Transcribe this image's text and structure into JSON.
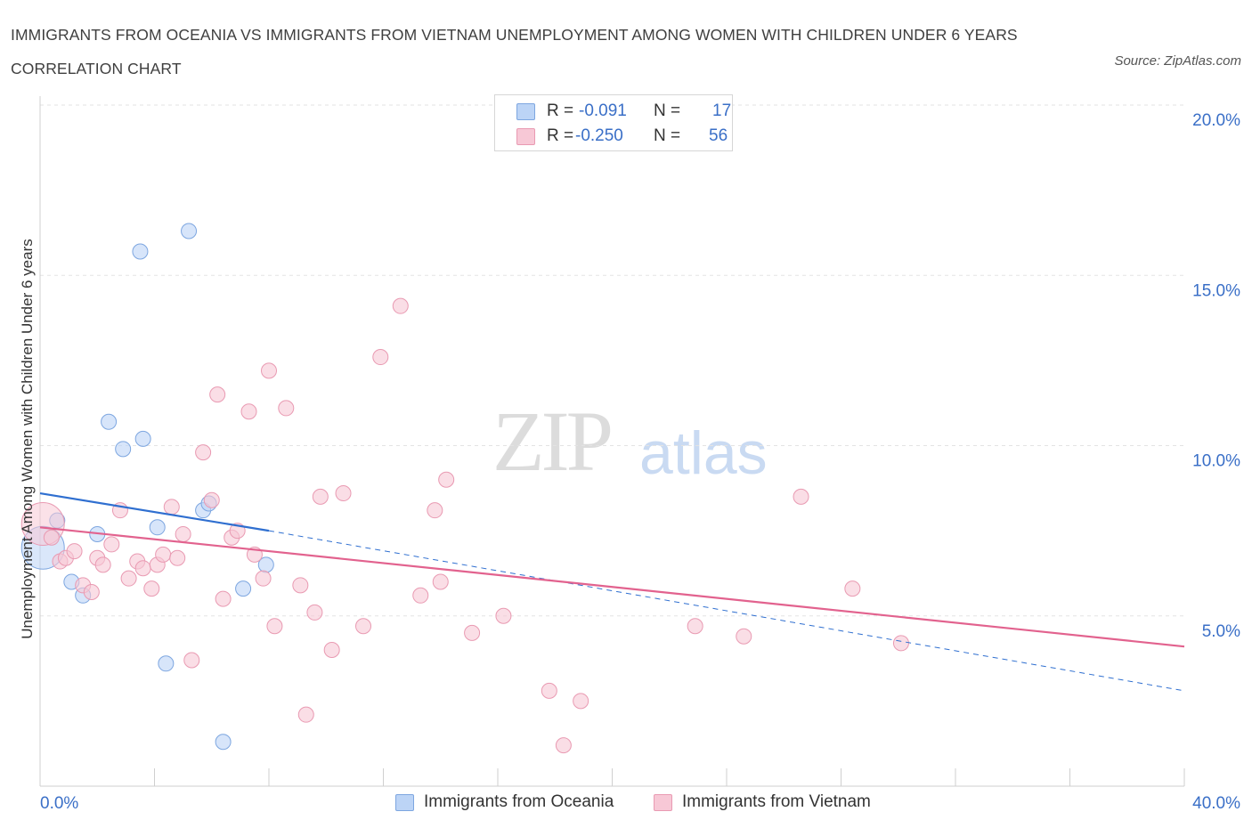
{
  "title": "IMMIGRANTS FROM OCEANIA VS IMMIGRANTS FROM VIETNAM UNEMPLOYMENT AMONG WOMEN WITH CHILDREN UNDER 6 YEARS CORRELATION CHART",
  "source": "Source: ZipAtlas.com",
  "watermark": {
    "zip": "ZIP",
    "atlas": "atlas"
  },
  "legend_top": [
    {
      "r_label": "R =",
      "r_value": "-0.091",
      "n_label": "N =",
      "n_value": "17"
    },
    {
      "r_label": "R =",
      "r_value": "-0.250",
      "n_label": "N =",
      "n_value": "56"
    }
  ],
  "legend_bottom": [
    {
      "label": "Immigrants from Oceania"
    },
    {
      "label": "Immigrants from Vietnam"
    }
  ],
  "colors": {
    "oceania_fill": "#bcd4f6",
    "oceania_stroke": "#7da6e0",
    "oceania_line": "#2f6fd0",
    "vietnam_fill": "#f7c8d6",
    "vietnam_stroke": "#e99ab2",
    "vietnam_line": "#e2628e",
    "tick_label": "#3a6fc7",
    "grid": "#e3e3e3"
  },
  "chart_data": {
    "type": "scatter",
    "title": "IMMIGRANTS FROM OCEANIA VS IMMIGRANTS FROM VIETNAM UNEMPLOYMENT AMONG WOMEN WITH CHILDREN UNDER 6 YEARS CORRELATION CHART",
    "xlabel": "",
    "ylabel": "Unemployment Among Women with Children Under 6 years",
    "xlim": [
      0,
      40
    ],
    "ylim": [
      0,
      20
    ],
    "x_tick_labels": [
      {
        "value": 0,
        "label": "0.0%"
      },
      {
        "value": 40,
        "label": "40.0%"
      }
    ],
    "y_tick_labels": [
      {
        "value": 5,
        "label": "5.0%"
      },
      {
        "value": 10,
        "label": "10.0%"
      },
      {
        "value": 15,
        "label": "15.0%"
      },
      {
        "value": 20,
        "label": "20.0%"
      }
    ],
    "y_gridlines": [
      5,
      10,
      15,
      20
    ],
    "x_minor_ticks": [
      0,
      4,
      8,
      12,
      16,
      20,
      24,
      28,
      32,
      36,
      40
    ],
    "series": [
      {
        "name": "Immigrants from Oceania",
        "r": -0.091,
        "n": 17,
        "trend": {
          "x0": 0,
          "y0": 8.6,
          "x1": 8,
          "y1": 7.5,
          "dash_to_x": 40,
          "dash_to_y": 2.8
        },
        "points": [
          {
            "x": 0.1,
            "y": 7.0,
            "size": "large"
          },
          {
            "x": 0.6,
            "y": 7.8
          },
          {
            "x": 1.1,
            "y": 6.0
          },
          {
            "x": 1.5,
            "y": 5.6
          },
          {
            "x": 2.0,
            "y": 7.4
          },
          {
            "x": 2.4,
            "y": 10.7
          },
          {
            "x": 2.9,
            "y": 9.9
          },
          {
            "x": 3.6,
            "y": 10.2
          },
          {
            "x": 3.5,
            "y": 15.7
          },
          {
            "x": 4.1,
            "y": 7.6
          },
          {
            "x": 4.4,
            "y": 3.6
          },
          {
            "x": 5.2,
            "y": 16.3
          },
          {
            "x": 5.7,
            "y": 8.1
          },
          {
            "x": 5.9,
            "y": 8.3
          },
          {
            "x": 6.4,
            "y": 1.3
          },
          {
            "x": 7.1,
            "y": 5.8
          },
          {
            "x": 7.9,
            "y": 6.5
          }
        ]
      },
      {
        "name": "Immigrants from Vietnam",
        "r": -0.25,
        "n": 56,
        "trend": {
          "x0": 0,
          "y0": 7.6,
          "x1": 40,
          "y1": 4.1
        },
        "points": [
          {
            "x": 0.1,
            "y": 7.7,
            "size": "large"
          },
          {
            "x": 0.4,
            "y": 7.3
          },
          {
            "x": 0.7,
            "y": 6.6
          },
          {
            "x": 0.9,
            "y": 6.7
          },
          {
            "x": 1.2,
            "y": 6.9
          },
          {
            "x": 1.5,
            "y": 5.9
          },
          {
            "x": 1.8,
            "y": 5.7
          },
          {
            "x": 2.0,
            "y": 6.7
          },
          {
            "x": 2.2,
            "y": 6.5
          },
          {
            "x": 2.5,
            "y": 7.1
          },
          {
            "x": 2.8,
            "y": 8.1
          },
          {
            "x": 3.1,
            "y": 6.1
          },
          {
            "x": 3.4,
            "y": 6.6
          },
          {
            "x": 3.6,
            "y": 6.4
          },
          {
            "x": 3.9,
            "y": 5.8
          },
          {
            "x": 4.1,
            "y": 6.5
          },
          {
            "x": 4.3,
            "y": 6.8
          },
          {
            "x": 4.6,
            "y": 8.2
          },
          {
            "x": 4.8,
            "y": 6.7
          },
          {
            "x": 5.0,
            "y": 7.4
          },
          {
            "x": 5.3,
            "y": 3.7
          },
          {
            "x": 5.7,
            "y": 9.8
          },
          {
            "x": 6.0,
            "y": 8.4
          },
          {
            "x": 6.2,
            "y": 11.5
          },
          {
            "x": 6.4,
            "y": 5.5
          },
          {
            "x": 6.7,
            "y": 7.3
          },
          {
            "x": 6.9,
            "y": 7.5
          },
          {
            "x": 7.3,
            "y": 11.0
          },
          {
            "x": 7.5,
            "y": 6.8
          },
          {
            "x": 7.8,
            "y": 6.1
          },
          {
            "x": 8.0,
            "y": 12.2
          },
          {
            "x": 8.2,
            "y": 4.7
          },
          {
            "x": 8.6,
            "y": 11.1
          },
          {
            "x": 9.1,
            "y": 5.9
          },
          {
            "x": 9.3,
            "y": 2.1
          },
          {
            "x": 9.6,
            "y": 5.1
          },
          {
            "x": 9.8,
            "y": 8.5
          },
          {
            "x": 10.2,
            "y": 4.0
          },
          {
            "x": 10.6,
            "y": 8.6
          },
          {
            "x": 11.3,
            "y": 4.7
          },
          {
            "x": 11.9,
            "y": 12.6
          },
          {
            "x": 12.6,
            "y": 14.1
          },
          {
            "x": 13.3,
            "y": 5.6
          },
          {
            "x": 13.8,
            "y": 8.1
          },
          {
            "x": 14.0,
            "y": 6.0
          },
          {
            "x": 14.2,
            "y": 9.0
          },
          {
            "x": 15.1,
            "y": 4.5
          },
          {
            "x": 16.2,
            "y": 5.0
          },
          {
            "x": 17.8,
            "y": 2.8
          },
          {
            "x": 18.3,
            "y": 1.2
          },
          {
            "x": 18.9,
            "y": 2.5
          },
          {
            "x": 22.9,
            "y": 4.7
          },
          {
            "x": 24.6,
            "y": 4.4
          },
          {
            "x": 26.6,
            "y": 8.5
          },
          {
            "x": 28.4,
            "y": 5.8
          },
          {
            "x": 30.1,
            "y": 4.2
          }
        ]
      }
    ]
  }
}
